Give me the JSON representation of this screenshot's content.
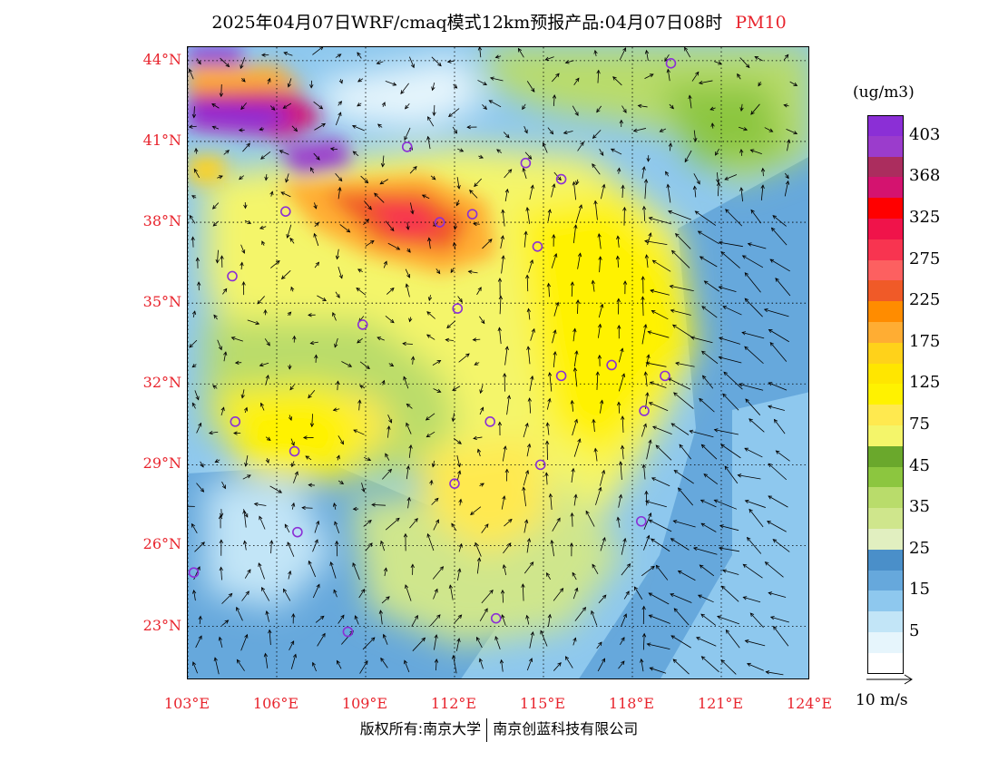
{
  "title": {
    "main": "2025年04月07日WRF/cmaq模式12km预报产品:04月07日08时",
    "variable": "PM10"
  },
  "map": {
    "lat_labels": [
      "44°N",
      "41°N",
      "38°N",
      "35°N",
      "32°N",
      "29°N",
      "26°N",
      "23°N"
    ],
    "lon_labels": [
      "103°E",
      "106°E",
      "109°E",
      "112°E",
      "115°E",
      "118°E",
      "121°E",
      "124°E"
    ],
    "lat_range": [
      21,
      44.5
    ],
    "lon_range": [
      103,
      124
    ],
    "stations": [
      {
        "lon": 119.3,
        "lat": 43.9
      },
      {
        "lon": 110.4,
        "lat": 40.8
      },
      {
        "lon": 114.4,
        "lat": 40.2
      },
      {
        "lon": 115.6,
        "lat": 39.6
      },
      {
        "lon": 106.3,
        "lat": 38.4
      },
      {
        "lon": 111.5,
        "lat": 38.0
      },
      {
        "lon": 112.6,
        "lat": 38.3
      },
      {
        "lon": 114.8,
        "lat": 37.1
      },
      {
        "lon": 104.5,
        "lat": 36.0
      },
      {
        "lon": 112.1,
        "lat": 34.8
      },
      {
        "lon": 108.9,
        "lat": 34.2
      },
      {
        "lon": 115.6,
        "lat": 32.3
      },
      {
        "lon": 117.3,
        "lat": 32.7
      },
      {
        "lon": 119.1,
        "lat": 32.3
      },
      {
        "lon": 104.6,
        "lat": 30.6
      },
      {
        "lon": 113.2,
        "lat": 30.6
      },
      {
        "lon": 118.4,
        "lat": 31.0
      },
      {
        "lon": 106.6,
        "lat": 29.5
      },
      {
        "lon": 112.0,
        "lat": 28.3
      },
      {
        "lon": 114.9,
        "lat": 29.0
      },
      {
        "lon": 106.7,
        "lat": 26.5
      },
      {
        "lon": 118.3,
        "lat": 26.9
      },
      {
        "lon": 103.2,
        "lat": 25.0
      },
      {
        "lon": 108.4,
        "lat": 22.8
      },
      {
        "lon": 113.4,
        "lat": 23.3
      }
    ]
  },
  "legend": {
    "unit": "(ug/m3)",
    "colors": [
      "#8b2fd6",
      "#9b3ccc",
      "#ab2d5e",
      "#d4136f",
      "#ff0000",
      "#f0134a",
      "#f83450",
      "#fd6060",
      "#f05a28",
      "#ff8c00",
      "#ffad33",
      "#ffd21a",
      "#ffe600",
      "#fff200",
      "#ffe94f",
      "#f4f56a",
      "#6aa82c",
      "#8cc63f",
      "#b9dc6b",
      "#cfe68c",
      "#e1efc0",
      "#4a8fc9",
      "#66a8dc",
      "#8ec8ee",
      "#c2e5f7",
      "#e6f5fc",
      "#ffffff"
    ],
    "labels": [
      "403",
      "368",
      "325",
      "275",
      "225",
      "175",
      "125",
      "75",
      "45",
      "35",
      "25",
      "15",
      "5"
    ]
  },
  "wind_reference": {
    "label": "10 m/s"
  },
  "copyright": {
    "left": "版权所有:南京大学",
    "right": "南京创蓝科技有限公司"
  },
  "colors": {
    "label_red": "#e8242d"
  }
}
